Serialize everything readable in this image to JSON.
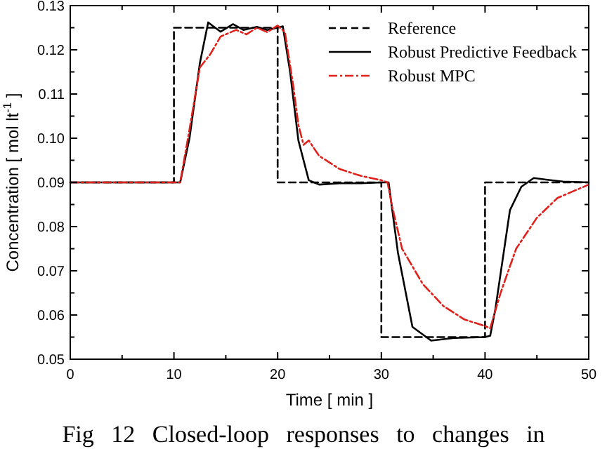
{
  "chart_data": {
    "type": "line",
    "xlabel": "Time [ min ]",
    "ylabel": "Concentration [ mol lt$^{-1}$ ]",
    "xlim": [
      0,
      50
    ],
    "ylim": [
      0.05,
      0.13
    ],
    "xticks": [
      0,
      {
        "value": 5,
        "label": null
      },
      10,
      {
        "value": 15,
        "label": null
      },
      20,
      {
        "value": 25,
        "label": null
      },
      30,
      {
        "value": 35,
        "label": null
      },
      40,
      {
        "value": 45,
        "label": null
      },
      50
    ],
    "yticks": [
      {
        "value": 0.05,
        "label": "0.05"
      },
      {
        "value": 0.055,
        "label": null
      },
      {
        "value": 0.06,
        "label": "0.06"
      },
      {
        "value": 0.065,
        "label": null
      },
      {
        "value": 0.07,
        "label": "0.07"
      },
      {
        "value": 0.075,
        "label": null
      },
      {
        "value": 0.08,
        "label": "0.08"
      },
      {
        "value": 0.085,
        "label": null
      },
      {
        "value": 0.09,
        "label": "0.09"
      },
      {
        "value": 0.095,
        "label": null
      },
      {
        "value": 0.1,
        "label": "0.10"
      },
      {
        "value": 0.105,
        "label": null
      },
      {
        "value": 0.11,
        "label": "0.11"
      },
      {
        "value": 0.115,
        "label": null
      },
      {
        "value": 0.12,
        "label": "0.12"
      },
      {
        "value": 0.125,
        "label": null
      },
      {
        "value": 0.13,
        "label": "0.13"
      }
    ],
    "grid": false,
    "legend": "top right",
    "marker": "none",
    "annotations": [
      "Fig 12 Closed-loop responses to changes in"
    ],
    "series": [
      {
        "name": "Reference",
        "type": "step",
        "color": "#000000",
        "line_style": "dashed",
        "x": [
          0,
          10,
          20,
          30,
          40,
          50
        ],
        "values": [
          0.09,
          0.125,
          0.09,
          0.055,
          0.09,
          0.09
        ]
      },
      {
        "name": "Robust Predictive Feedback",
        "color": "#000000",
        "line_style": "solid",
        "x": [
          0,
          10.6,
          11.5,
          12.5,
          13.3,
          14.5,
          15.7,
          16.7,
          18,
          19,
          20.5,
          21.2,
          22,
          23,
          24,
          26,
          28,
          30,
          30.7,
          31.6,
          33,
          34.8,
          37,
          40,
          40.5,
          41,
          42.4,
          43.5,
          44.7,
          46,
          47.5,
          50
        ],
        "values": [
          0.09,
          0.09,
          0.1,
          0.117,
          0.1262,
          0.1241,
          0.1258,
          0.1245,
          0.1252,
          0.1245,
          0.1253,
          0.115,
          0.0995,
          0.0905,
          0.0895,
          0.0898,
          0.0898,
          0.09,
          0.09,
          0.0741,
          0.0573,
          0.0542,
          0.0548,
          0.055,
          0.0553,
          0.0614,
          0.0837,
          0.089,
          0.091,
          0.0906,
          0.0902,
          0.09
        ]
      },
      {
        "name": "Robust MPC",
        "color": "#e0201a",
        "line_style": "dashdot",
        "x": [
          0,
          10.6,
          11.5,
          12.5,
          13.5,
          14.5,
          16,
          17,
          18,
          19,
          20,
          20.7,
          21.5,
          22,
          22.5,
          23,
          24,
          26,
          28,
          30,
          30.6,
          31,
          32,
          34,
          36,
          38,
          40,
          40.5,
          41.5,
          43,
          45,
          47,
          50
        ],
        "values": [
          0.09,
          0.09,
          0.102,
          0.116,
          0.119,
          0.123,
          0.1245,
          0.1235,
          0.125,
          0.124,
          0.1255,
          0.124,
          0.112,
          0.103,
          0.0985,
          0.0995,
          0.096,
          0.093,
          0.0915,
          0.0905,
          0.09,
          0.085,
          0.075,
          0.067,
          0.062,
          0.059,
          0.0575,
          0.057,
          0.065,
          0.075,
          0.082,
          0.0865,
          0.0895
        ]
      }
    ]
  }
}
